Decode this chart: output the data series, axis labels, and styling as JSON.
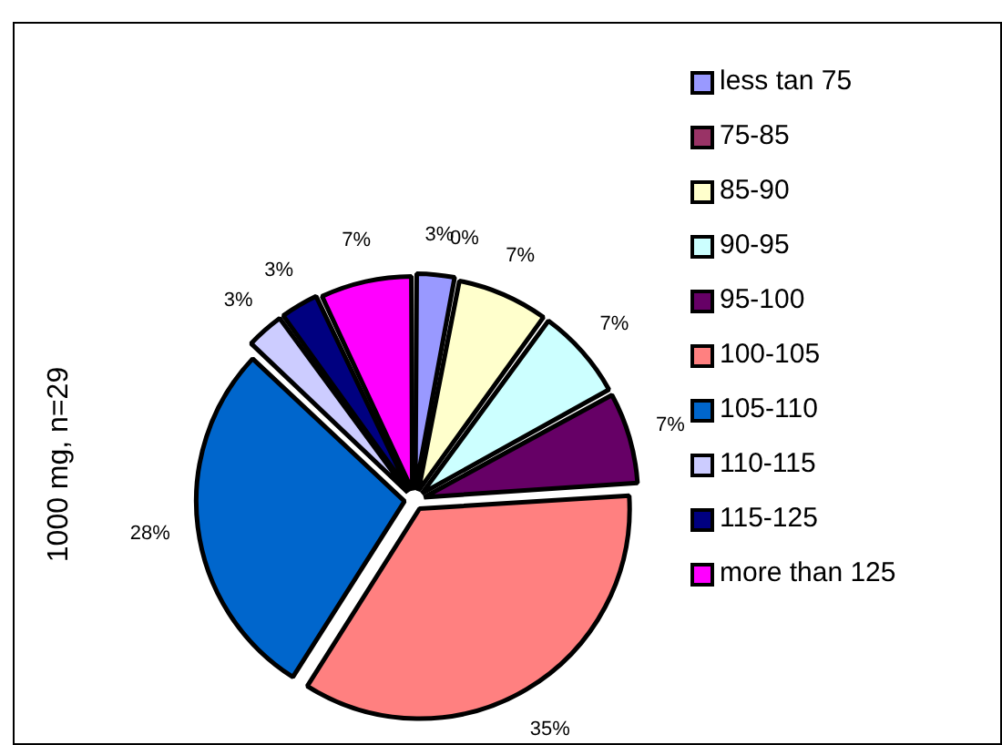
{
  "chart_data": {
    "type": "pie",
    "ylabel": "1000 mg, n=29",
    "categories": [
      "less tan 75",
      "75-85",
      "85-90",
      "90-95",
      "95-100",
      "100-105",
      "105-110",
      "110-115",
      "115-125",
      "more than 125"
    ],
    "values": [
      3,
      0,
      7,
      7,
      7,
      35,
      28,
      3,
      3,
      7
    ],
    "colors": [
      "#9999ff",
      "#993366",
      "#ffffcc",
      "#ccffff",
      "#660066",
      "#ff8080",
      "#0066cc",
      "#ccccff",
      "#000080",
      "#ff00ff"
    ],
    "value_labels": [
      "3%",
      "0%",
      "7%",
      "7%",
      "7%",
      "35%",
      "28%",
      "3%",
      "3%",
      "7%"
    ],
    "legend": "top right"
  }
}
